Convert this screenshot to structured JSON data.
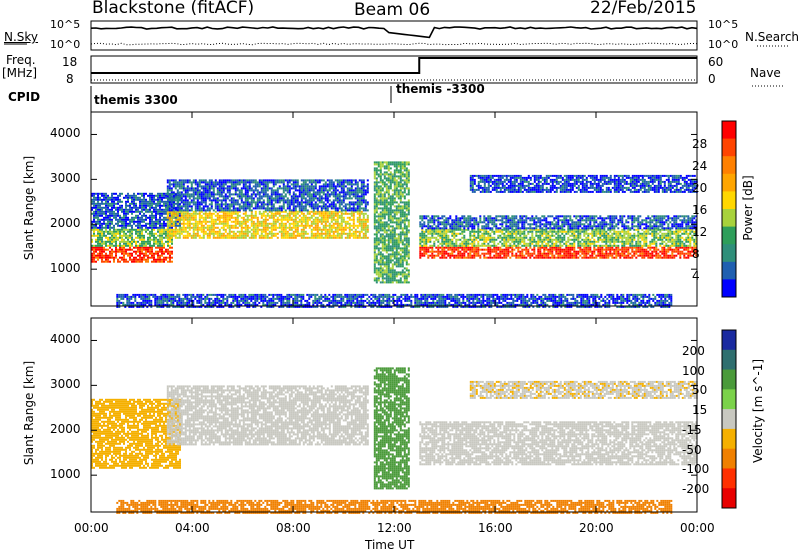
{
  "header": {
    "station": "Blackstone (fitACF)",
    "beam": "Beam 06",
    "date": "22/Feb/2015"
  },
  "noise_panel": {
    "left_label": "N.Sky",
    "right_label": "N.Search",
    "left_ticks": [
      "10^5",
      "10^0"
    ],
    "right_ticks": [
      "10^5",
      "10^0"
    ]
  },
  "freq_panel": {
    "left_label_1": "Freq.",
    "left_label_2": "[MHz]",
    "right_label": "Nave",
    "left_ticks": [
      "18",
      "8"
    ],
    "right_ticks": [
      "60",
      "0"
    ]
  },
  "cpid": {
    "label": "CPID",
    "segments": [
      "themis 3300",
      "themis -3300"
    ]
  },
  "chart_data": [
    {
      "type": "heatmap",
      "title": "",
      "xlabel": "Time UT",
      "ylabel": "Slant Range [km]",
      "x_ticks": [
        "00:00",
        "04:00",
        "08:00",
        "12:00",
        "16:00",
        "20:00",
        "00:00"
      ],
      "y_ticks": [
        "1000",
        "2000",
        "3000",
        "4000"
      ],
      "xlim_hours": [
        0,
        24
      ],
      "ylim_km": [
        180,
        4500
      ],
      "colorbar": {
        "label": "Power [dB]",
        "ticks": [
          "28",
          "24",
          "20",
          "16",
          "12",
          "8",
          "4"
        ],
        "colors": [
          "#ff0000",
          "#ff4400",
          "#ff8000",
          "#ffa500",
          "#ffd700",
          "#a8d23c",
          "#2e9e5a",
          "#2f8f7a",
          "#1f5fb0",
          "#0000ff"
        ]
      },
      "bands": [
        {
          "t0": 0.0,
          "t1": 3.2,
          "r0": 1150,
          "r1": 1500,
          "value": 28
        },
        {
          "t0": 0.0,
          "t1": 3.2,
          "r0": 1500,
          "r1": 1900,
          "value": 14
        },
        {
          "t0": 0.0,
          "t1": 3.5,
          "r0": 1900,
          "r1": 2700,
          "value": 6
        },
        {
          "t0": 3.0,
          "t1": 11.0,
          "r0": 1700,
          "r1": 2300,
          "value": 18
        },
        {
          "t0": 3.0,
          "t1": 11.0,
          "r0": 2300,
          "r1": 3000,
          "value": 6
        },
        {
          "t0": 13.0,
          "t1": 24.0,
          "r0": 1250,
          "r1": 1500,
          "value": 28
        },
        {
          "t0": 13.0,
          "t1": 24.0,
          "r0": 1500,
          "r1": 1900,
          "value": 14
        },
        {
          "t0": 13.0,
          "t1": 24.0,
          "r0": 1900,
          "r1": 2200,
          "value": 6
        },
        {
          "t0": 15.0,
          "t1": 24.0,
          "r0": 2700,
          "r1": 3100,
          "value": 5
        },
        {
          "t0": 11.2,
          "t1": 12.6,
          "r0": 700,
          "r1": 3400,
          "value": 12
        },
        {
          "t0": 1.0,
          "t1": 23.0,
          "r0": 180,
          "r1": 450,
          "value": 5
        }
      ]
    },
    {
      "type": "heatmap",
      "title": "",
      "xlabel": "Time UT",
      "ylabel": "Slant Range [km]",
      "x_ticks": [
        "00:00",
        "04:00",
        "08:00",
        "12:00",
        "16:00",
        "20:00",
        "00:00"
      ],
      "y_ticks": [
        "1000",
        "2000",
        "3000",
        "4000"
      ],
      "xlim_hours": [
        0,
        24
      ],
      "ylim_km": [
        180,
        4500
      ],
      "colorbar": {
        "label": "Velocity [m s^-1]",
        "ticks": [
          "200",
          "100",
          "50",
          "15",
          "-15",
          "-50",
          "-100",
          "-200"
        ],
        "colors": [
          "#1a2aa0",
          "#2f6f6f",
          "#4a9a3a",
          "#7bd24a",
          "#c8c8c0",
          "#f5b000",
          "#f08000",
          "#ff3000",
          "#e80000"
        ]
      },
      "bands": [
        {
          "t0": 0.0,
          "t1": 3.5,
          "r0": 1150,
          "r1": 2700,
          "value": -40
        },
        {
          "t0": 3.0,
          "t1": 11.0,
          "r0": 1700,
          "r1": 3000,
          "value": 0
        },
        {
          "t0": 13.0,
          "t1": 24.0,
          "r0": 1250,
          "r1": 2200,
          "value": 0
        },
        {
          "t0": 15.0,
          "t1": 24.0,
          "r0": 2700,
          "r1": 3100,
          "value": -10
        },
        {
          "t0": 11.2,
          "t1": 12.6,
          "r0": 700,
          "r1": 3400,
          "value": 40
        },
        {
          "t0": 1.0,
          "t1": 23.0,
          "r0": 180,
          "r1": 450,
          "value": -60
        }
      ]
    }
  ]
}
